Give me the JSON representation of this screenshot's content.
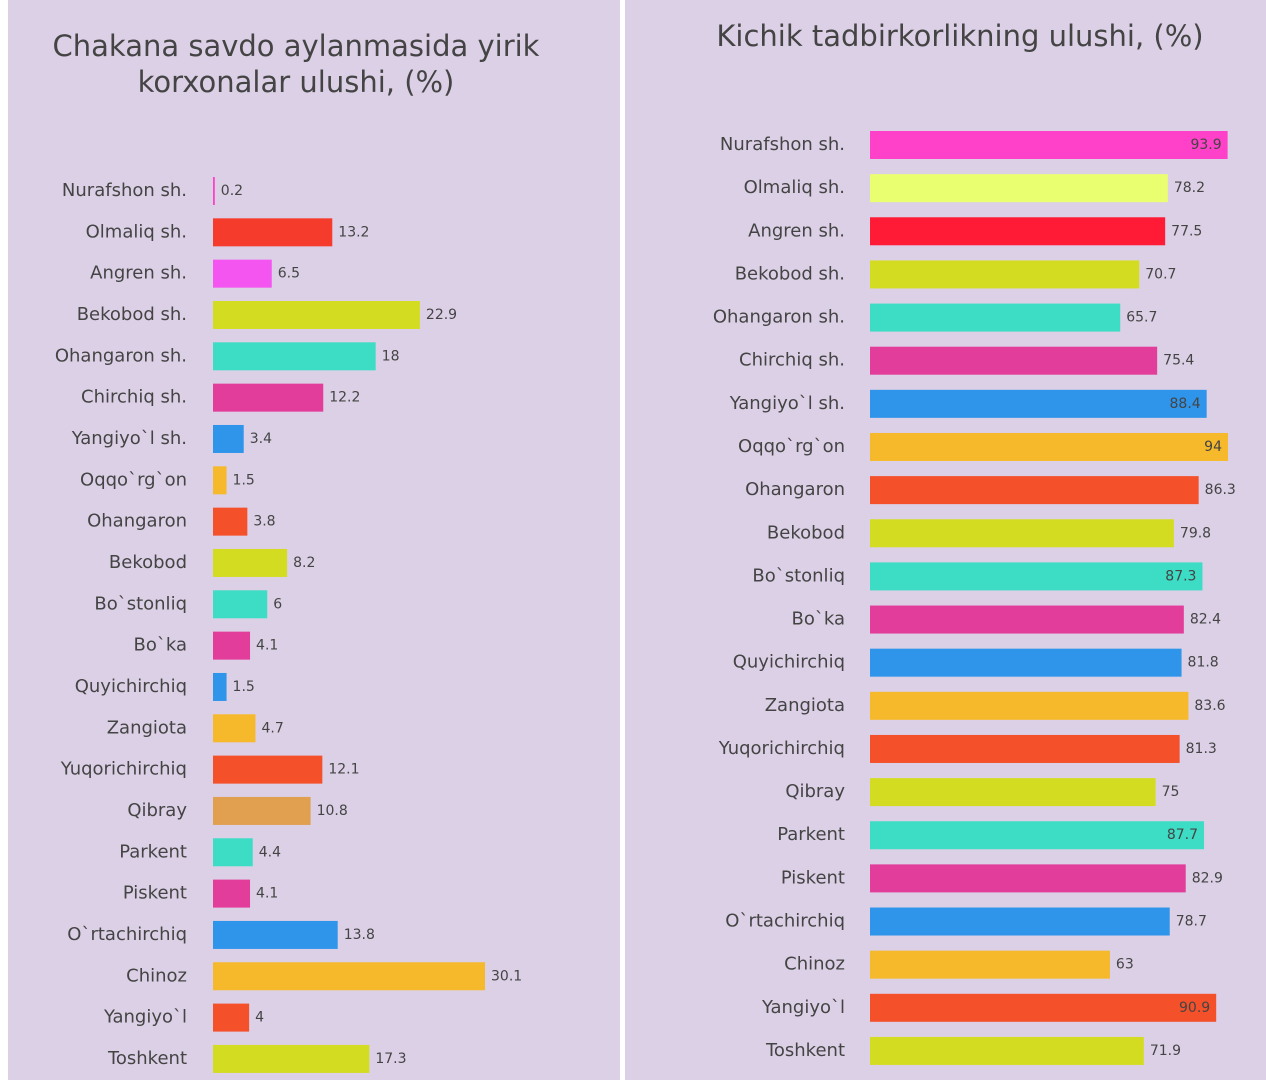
{
  "chart_data": [
    {
      "type": "bar",
      "orientation": "horizontal",
      "title": "Chakana savdo aylanmasida yirik korxonalar ulushi, (%)",
      "categories": [
        "Nurafshon sh.",
        "Olmaliq sh.",
        "Angren sh.",
        "Bekobod sh.",
        "Ohangaron sh.",
        "Chirchiq sh.",
        "Yangiyo`l sh.",
        "Oqqo`rg`on",
        "Ohangaron",
        "Bekobod",
        "Bo`stonliq",
        "Bo`ka",
        "Quyichirchiq",
        "Zangiota",
        "Yuqorichirchiq",
        "Qibray",
        "Parkent",
        "Piskent",
        "O`rtachirchiq",
        "Chinoz",
        "Yangiyo`l",
        "Toshkent"
      ],
      "values": [
        0.2,
        13.2,
        6.5,
        22.9,
        18,
        12.2,
        3.4,
        1.5,
        3.8,
        8.2,
        6,
        4.1,
        1.5,
        4.7,
        12.1,
        10.8,
        4.4,
        4.1,
        13.8,
        30.1,
        4,
        17.3
      ],
      "colors": [
        "#ff40c8",
        "#f53b2c",
        "#f455f0",
        "#d4dc22",
        "#3ddcc4",
        "#e23d9a",
        "#2f95ea",
        "#f6b92b",
        "#f4502a",
        "#d4dc22",
        "#3ddcc4",
        "#e23d9a",
        "#2f95ea",
        "#f6b92b",
        "#f4502a",
        "#e0a050",
        "#3ddcc4",
        "#e23d9a",
        "#2f95ea",
        "#f6b92b",
        "#f4502a",
        "#d4dc22"
      ]
    },
    {
      "type": "bar",
      "orientation": "horizontal",
      "title": "Kichik tadbirkorlikning ulushi, (%)",
      "categories": [
        "Nurafshon sh.",
        "Olmaliq sh.",
        "Angren sh.",
        "Bekobod sh.",
        "Ohangaron sh.",
        "Chirchiq sh.",
        "Yangiyo`l sh.",
        "Oqqo`rg`on",
        "Ohangaron",
        "Bekobod",
        "Bo`stonliq",
        "Bo`ka",
        "Quyichirchiq",
        "Zangiota",
        "Yuqorichirchiq",
        "Qibray",
        "Parkent",
        "Piskent",
        "O`rtachirchiq",
        "Chinoz",
        "Yangiyo`l",
        "Toshkent"
      ],
      "values": [
        93.9,
        78.2,
        77.5,
        70.7,
        65.7,
        75.4,
        88.4,
        94,
        86.3,
        79.8,
        87.3,
        82.4,
        81.8,
        83.6,
        81.3,
        75,
        87.7,
        82.9,
        78.7,
        63,
        90.9,
        71.9
      ],
      "colors": [
        "#ff40c8",
        "#eaff70",
        "#ff1a35",
        "#d4dc22",
        "#3ddcc4",
        "#e23d9a",
        "#2f95ea",
        "#f6b92b",
        "#f4502a",
        "#d4dc22",
        "#3ddcc4",
        "#e23d9a",
        "#2f95ea",
        "#f6b92b",
        "#f4502a",
        "#d4dc22",
        "#3ddcc4",
        "#e23d9a",
        "#2f95ea",
        "#f6b92b",
        "#f4502a",
        "#d4dc22"
      ]
    }
  ]
}
